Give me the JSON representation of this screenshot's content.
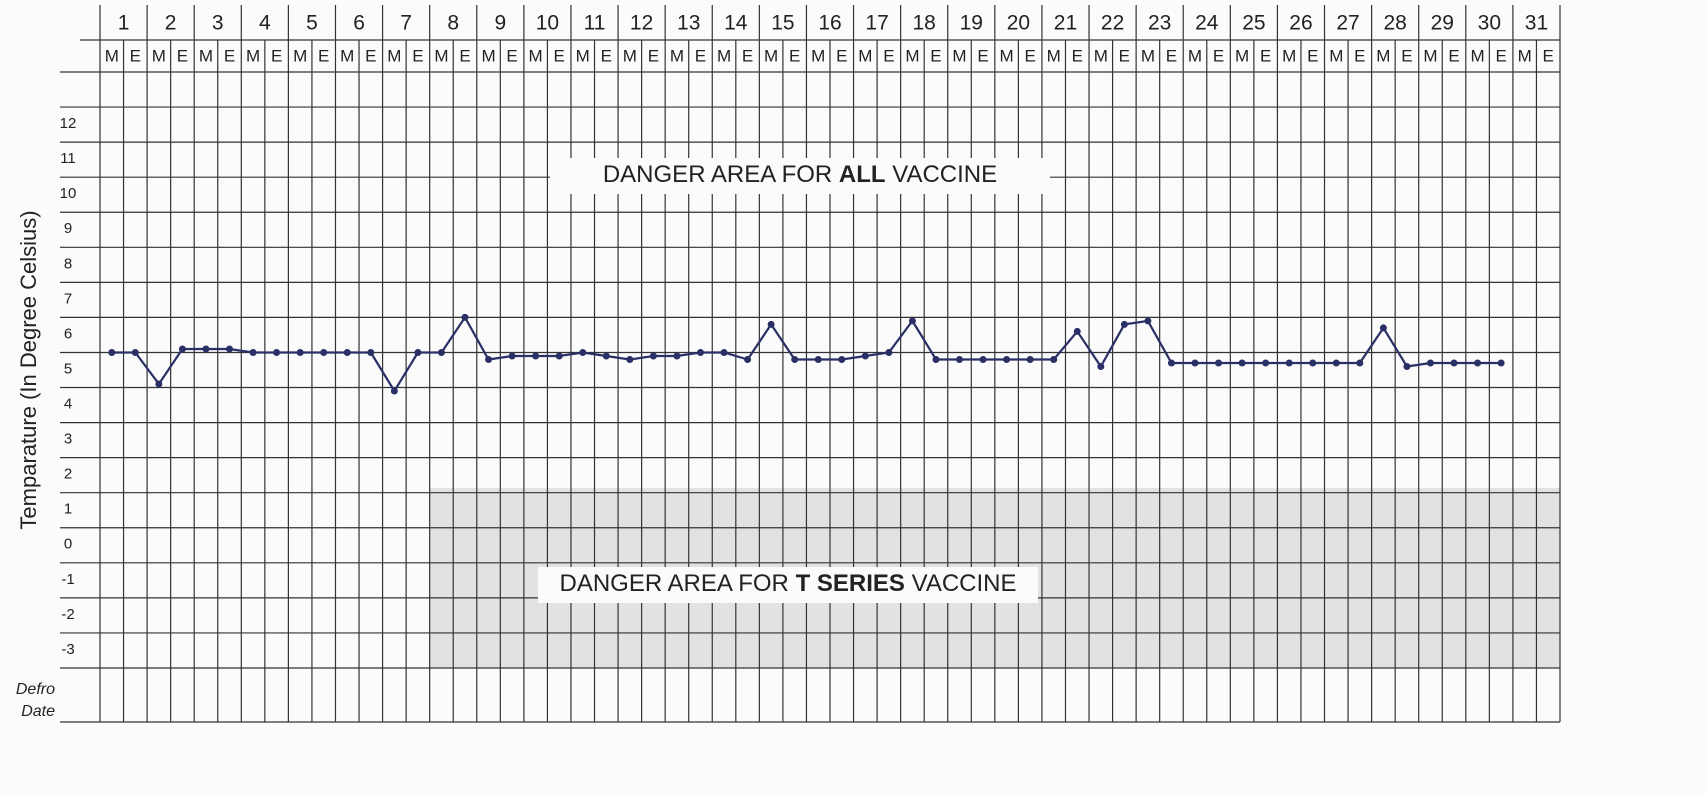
{
  "chart_data": {
    "type": "line",
    "y_label": "Temparature (In Degree Celsius)",
    "groups": [
      "1",
      "2",
      "3",
      "4",
      "5",
      "6",
      "7",
      "8",
      "9",
      "10",
      "11",
      "12",
      "13",
      "14",
      "15",
      "16",
      "17",
      "18",
      "19",
      "20",
      "21",
      "22",
      "23",
      "24",
      "25",
      "26",
      "27",
      "28",
      "29",
      "30",
      "31"
    ],
    "categories": [
      "M",
      "E",
      "M",
      "E",
      "M",
      "E",
      "M",
      "E",
      "M",
      "E",
      "M",
      "E",
      "M",
      "E",
      "M",
      "E",
      "M",
      "E",
      "M",
      "E",
      "M",
      "E",
      "M",
      "E",
      "M",
      "E",
      "M",
      "E",
      "M",
      "E",
      "M",
      "E",
      "M",
      "E",
      "M",
      "E",
      "M",
      "E",
      "M",
      "E",
      "M",
      "E",
      "M",
      "E",
      "M",
      "E",
      "M",
      "E",
      "M",
      "E",
      "M",
      "E",
      "M",
      "E",
      "M",
      "E",
      "M",
      "E",
      "M",
      "E",
      "M",
      "E"
    ],
    "series": [
      {
        "name": "Temperature",
        "color": "#2a2f66",
        "values": [
          5,
          5,
          4.1,
          5.1,
          5.1,
          5.1,
          5,
          5,
          5,
          5,
          5,
          5,
          3.9,
          5,
          5,
          6,
          4.8,
          4.9,
          4.9,
          4.9,
          5,
          4.9,
          4.8,
          4.9,
          4.9,
          5,
          5,
          4.8,
          5.8,
          4.8,
          4.8,
          4.8,
          4.9,
          5,
          5.9,
          4.8,
          4.8,
          4.8,
          4.8,
          4.8,
          4.8,
          5.6,
          4.6,
          5.8,
          5.9,
          4.7,
          4.7,
          4.7,
          4.7,
          4.7,
          4.7,
          4.7,
          4.7,
          4.7,
          5.7,
          4.6,
          4.7,
          4.7,
          4.7,
          4.7,
          null,
          null
        ]
      }
    ],
    "ylim": [
      -4,
      13
    ],
    "yticks": [
      -3,
      -2,
      -1,
      0,
      1,
      2,
      3,
      4,
      5,
      6,
      7,
      8,
      9,
      10,
      11,
      12
    ],
    "grid": true,
    "annotations": [
      [
        "DANGER AREA FOR ",
        "ALL",
        " VACCINE"
      ],
      [
        "DANGER AREA FOR ",
        "T SERIES",
        " VACCINE"
      ]
    ],
    "footer_labels": [
      "Defro",
      "Date"
    ]
  }
}
